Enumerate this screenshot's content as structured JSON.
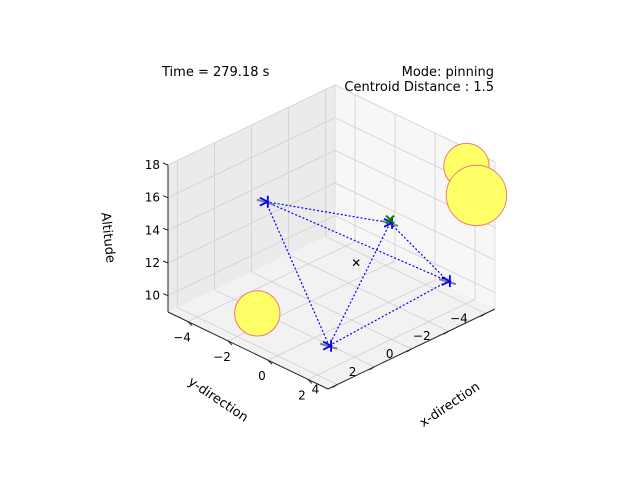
{
  "chart_data": {
    "type": "scatter",
    "projection": "3d",
    "time_text": "Time = 279.18 s",
    "mode_text": "Mode: pinning",
    "centroid_text": "Centroid Distance : 1.5",
    "xlabel": "x-direction",
    "ylabel": "y-direction",
    "zlabel": "Altitude",
    "xlim": [
      -5,
      3
    ],
    "ylim": [
      -4.5,
      4.5
    ],
    "zlim": [
      9,
      18
    ],
    "x_ticks": [
      "−4",
      "−2",
      "0",
      "2"
    ],
    "y_ticks": [
      "4",
      "2",
      "0",
      "−2",
      "−4"
    ],
    "z_ticks": [
      "18",
      "16",
      "14",
      "12",
      "10"
    ],
    "grid": true,
    "colors": {
      "agent": "#0000ff",
      "link": "#0000ff",
      "obstacle_fill": "#ffff66",
      "obstacle_edge": "#f08070",
      "target": "#008000",
      "centroid": "#000000",
      "trail": "#808080"
    },
    "agents": [
      {
        "x": -1.5,
        "y": 3.0,
        "z": 17.0
      },
      {
        "x": 1.0,
        "y": -1.0,
        "z": 15.0
      },
      {
        "x": 1.2,
        "y": 2.5,
        "z": 9.5
      },
      {
        "x": 2.5,
        "y": -2.5,
        "z": 11.5
      }
    ],
    "links": [
      [
        0,
        1
      ],
      [
        0,
        2
      ],
      [
        0,
        3
      ],
      [
        1,
        2
      ],
      [
        1,
        3
      ],
      [
        2,
        3
      ]
    ],
    "target": {
      "x": 1.0,
      "y": -1.0,
      "z": 15.2
    },
    "centroid": {
      "x": 0.7,
      "y": 0.5,
      "z": 13.2
    },
    "obstacles": [
      {
        "x": -1.0,
        "y": 4.0,
        "z": 11.0,
        "r": 0.6
      },
      {
        "x": 2.5,
        "y": -3.5,
        "z": 18.0,
        "r": 0.6
      },
      {
        "x": 3.0,
        "y": -3.5,
        "z": 16.5,
        "r": 0.8
      }
    ]
  }
}
